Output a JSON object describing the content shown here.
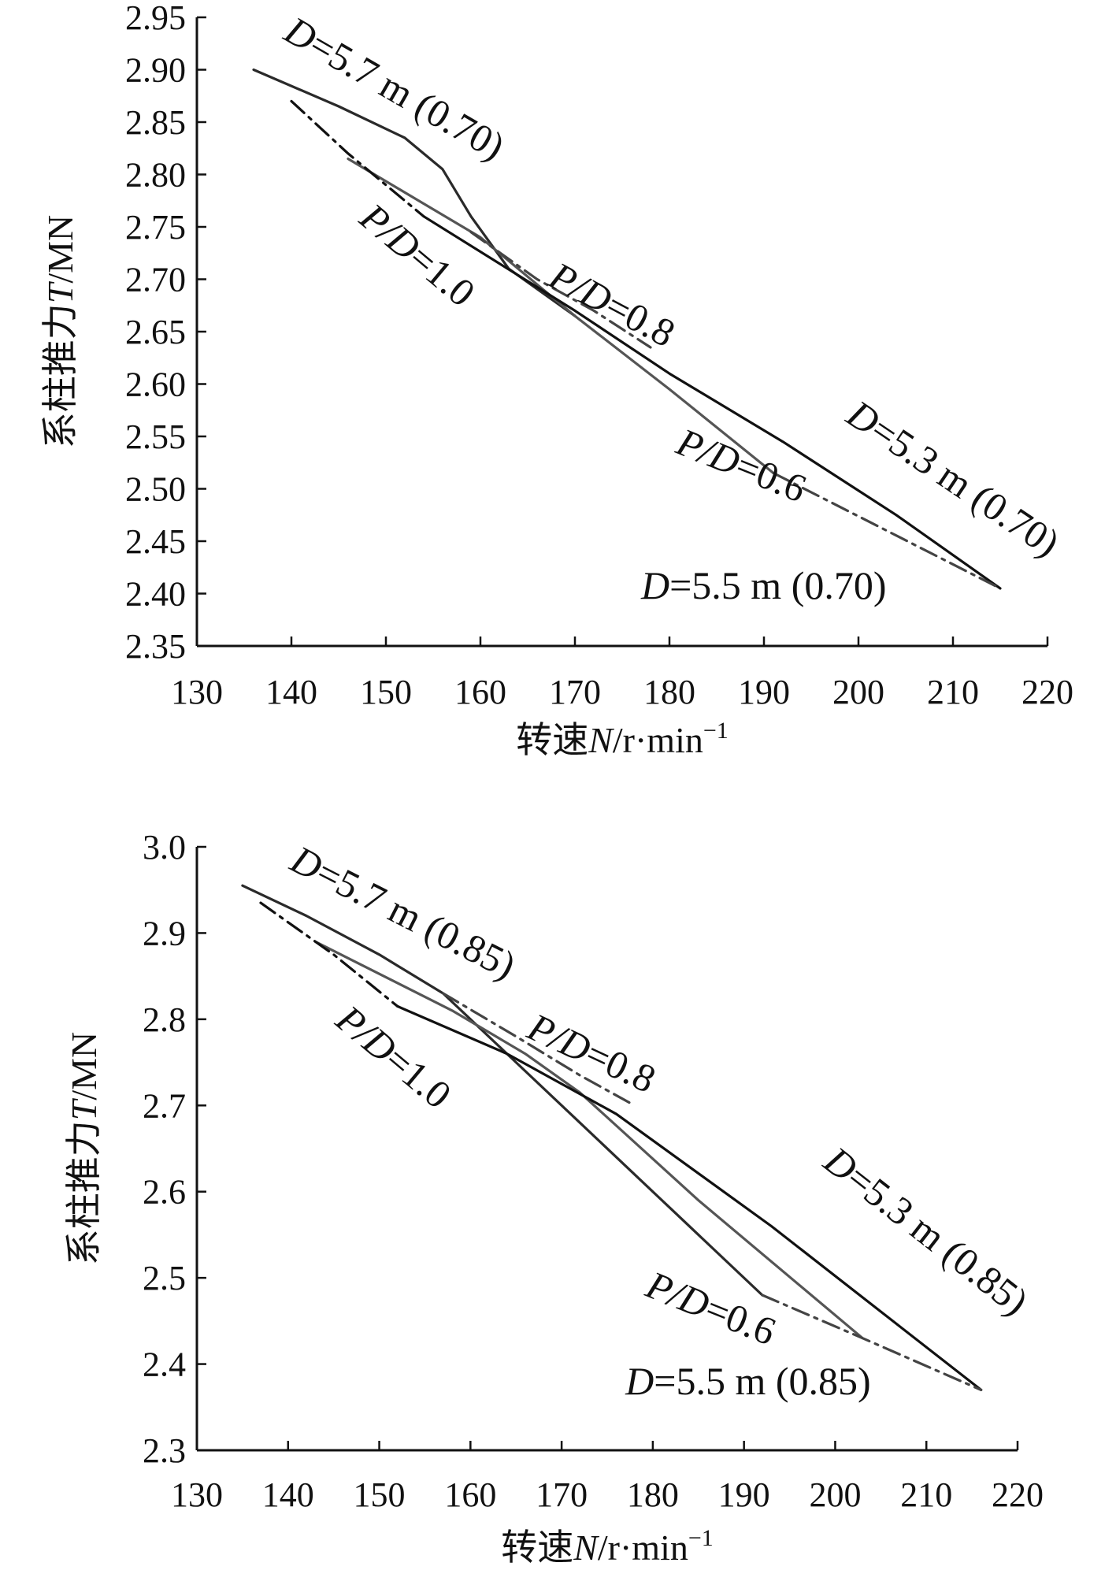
{
  "chart_data": [
    {
      "type": "line",
      "title": "",
      "xlabel": {
        "prefix": "转速",
        "var": "N",
        "unit": "/r·min",
        "sup": "−1"
      },
      "ylabel": {
        "prefix": "系柱推力",
        "var": "T",
        "unit": "/MN"
      },
      "xlim": [
        130,
        220
      ],
      "ylim": [
        2.35,
        2.95
      ],
      "xticks": [
        "130",
        "140",
        "150",
        "160",
        "170",
        "180",
        "190",
        "200",
        "210",
        "220"
      ],
      "yticks": [
        "2.35",
        "2.40",
        "2.45",
        "2.50",
        "2.55",
        "2.60",
        "2.65",
        "2.70",
        "2.75",
        "2.80",
        "2.85",
        "2.90",
        "2.95"
      ],
      "grid": false,
      "series": [
        {
          "name": "D=5.7 m (0.70)",
          "color": "#2a2a2a",
          "dash": "",
          "x": [
            136,
            145,
            152,
            156,
            159,
            163,
            170
          ],
          "y": [
            2.9,
            2.865,
            2.835,
            2.805,
            2.76,
            2.71,
            2.665
          ]
        },
        {
          "name": "D=5.5 m (0.70)",
          "color": "#555555",
          "dash": "",
          "x": [
            146,
            160,
            170,
            180,
            191
          ],
          "y": [
            2.815,
            2.74,
            2.665,
            2.595,
            2.515
          ]
        },
        {
          "name": "D=5.3 m (0.70)",
          "color": "#111111",
          "dash": "",
          "x": [
            154,
            170,
            180,
            192,
            204,
            215
          ],
          "y": [
            2.76,
            2.67,
            2.61,
            2.545,
            2.475,
            2.405
          ]
        },
        {
          "name": "P/D=1.0",
          "color": "#111111",
          "dash": "22,8,4,8",
          "x": [
            140,
            146,
            154
          ],
          "y": [
            2.87,
            2.82,
            2.76
          ]
        },
        {
          "name": "P/D=0.8",
          "color": "#444444",
          "dash": "22,8,4,8",
          "x": [
            159,
            166,
            172,
            178
          ],
          "y": [
            2.745,
            2.7,
            2.67,
            2.635
          ]
        },
        {
          "name": "P/D=0.6",
          "color": "#444444",
          "dash": "22,8,4,8",
          "x": [
            191,
            203,
            215
          ],
          "y": [
            2.515,
            2.46,
            2.405
          ]
        }
      ],
      "annotations": [
        {
          "var": "D",
          "text": "=5.7 m (0.70)",
          "x": 139,
          "y": 2.93,
          "angle": 30
        },
        {
          "var": "P/D",
          "text": "=1.0",
          "x": 147,
          "y": 2.755,
          "angle": 40
        },
        {
          "var": "P/D",
          "text": "=0.8",
          "x": 167,
          "y": 2.695,
          "angle": 28
        },
        {
          "var": "P/D",
          "text": "=0.6",
          "x": 180.5,
          "y": 2.535,
          "angle": 22
        },
        {
          "var": "D",
          "text": "=5.3 m (0.70)",
          "x": 198.5,
          "y": 2.565,
          "angle": 34
        },
        {
          "var": "D",
          "text": "=5.5 m (0.70)",
          "x": 177,
          "y": 2.395,
          "angle": 0
        }
      ]
    },
    {
      "type": "line",
      "title": "",
      "xlabel": {
        "prefix": "转速",
        "var": "N",
        "unit": "/r·min",
        "sup": "−1"
      },
      "ylabel": {
        "prefix": "系柱推力",
        "var": "T",
        "unit": "/MN"
      },
      "xlim": [
        130,
        220
      ],
      "ylim": [
        2.3,
        3.0
      ],
      "xticks": [
        "130",
        "140",
        "150",
        "160",
        "170",
        "180",
        "190",
        "200",
        "210",
        "220"
      ],
      "yticks": [
        "2.3",
        "2.4",
        "2.5",
        "2.6",
        "2.7",
        "2.8",
        "2.9",
        "3.0"
      ],
      "grid": false,
      "series": [
        {
          "name": "D=5.7 m (0.85)",
          "color": "#2a2a2a",
          "dash": "",
          "x": [
            135,
            142,
            150,
            157,
            164,
            172,
            182,
            192
          ],
          "y": [
            2.955,
            2.92,
            2.875,
            2.83,
            2.76,
            2.68,
            2.58,
            2.48
          ]
        },
        {
          "name": "D=5.5 m (0.85)",
          "color": "#555555",
          "dash": "",
          "x": [
            143,
            158,
            166,
            172,
            185,
            203
          ],
          "y": [
            2.89,
            2.81,
            2.76,
            2.715,
            2.59,
            2.43
          ]
        },
        {
          "name": "D=5.3 m (0.85)",
          "color": "#111111",
          "dash": "",
          "x": [
            152,
            164,
            176,
            193,
            216
          ],
          "y": [
            2.815,
            2.76,
            2.69,
            2.56,
            2.37
          ]
        },
        {
          "name": "P/D=1.0",
          "color": "#111111",
          "dash": "22,8,4,8",
          "x": [
            137,
            145,
            152
          ],
          "y": [
            2.935,
            2.875,
            2.815
          ]
        },
        {
          "name": "P/D=0.8",
          "color": "#444444",
          "dash": "22,8,4,8",
          "x": [
            157,
            165,
            172,
            178
          ],
          "y": [
            2.83,
            2.78,
            2.735,
            2.7
          ]
        },
        {
          "name": "P/D=0.6",
          "color": "#444444",
          "dash": "22,8,4,8",
          "x": [
            192,
            203,
            216
          ],
          "y": [
            2.48,
            2.43,
            2.37
          ]
        }
      ],
      "annotations": [
        {
          "var": "D",
          "text": "=5.7 m (0.85)",
          "x": 140,
          "y": 2.975,
          "angle": 27
        },
        {
          "var": "P/D",
          "text": "=1.0",
          "x": 145,
          "y": 2.795,
          "angle": 40
        },
        {
          "var": "P/D",
          "text": "=0.8",
          "x": 166,
          "y": 2.78,
          "angle": 25
        },
        {
          "var": "P/D",
          "text": "=0.6",
          "x": 179,
          "y": 2.48,
          "angle": 22
        },
        {
          "var": "D",
          "text": "=5.3 m (0.85)",
          "x": 198.5,
          "y": 2.63,
          "angle": 38
        },
        {
          "var": "D",
          "text": "=5.5 m (0.85)",
          "x": 177,
          "y": 2.365,
          "angle": 0
        }
      ]
    }
  ]
}
